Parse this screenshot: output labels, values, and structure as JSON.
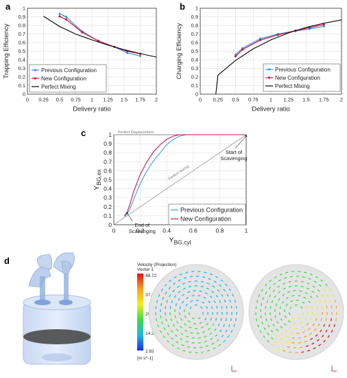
{
  "panels": {
    "a": "a",
    "b": "b",
    "c": "c",
    "d": "d"
  },
  "chart_data": [
    {
      "panel": "a",
      "type": "line",
      "xlabel": "Delivery ratio",
      "ylabel": "Trapping Efficiency",
      "xlim": [
        0,
        2
      ],
      "ylim": [
        0,
        1
      ],
      "xticks": [
        "0",
        "0.25",
        "0.5",
        "0.75",
        "1",
        "1.25",
        "1.5",
        "1.75",
        "2"
      ],
      "yticks": [
        "0",
        "0.1",
        "0.2",
        "0.3",
        "0.4",
        "0.5",
        "0.6",
        "0.7",
        "0.8",
        "0.9",
        "1"
      ],
      "grid": true,
      "legend": "bottom-left",
      "series": [
        {
          "name": "Previous Configuration",
          "color": "#3a8dde",
          "marker": "diamond",
          "x": [
            0.5,
            0.6,
            0.85,
            1.1,
            1.35,
            1.55,
            1.75
          ],
          "y": [
            0.935,
            0.9,
            0.73,
            0.62,
            0.55,
            0.48,
            0.445
          ]
        },
        {
          "name": "New Configuration",
          "color": "#c0153a",
          "marker": "diamond",
          "x": [
            0.5,
            0.6,
            0.85,
            1.1,
            1.35,
            1.55,
            1.75
          ],
          "y": [
            0.905,
            0.87,
            0.72,
            0.62,
            0.55,
            0.5,
            0.47
          ]
        },
        {
          "name": "Perfect Mixing",
          "color": "#000000",
          "marker": "none",
          "x": [
            0.25,
            0.5,
            0.75,
            1,
            1.25,
            1.5,
            1.75,
            2
          ],
          "y": [
            0.907,
            0.787,
            0.699,
            0.632,
            0.571,
            0.518,
            0.472,
            0.432
          ]
        }
      ]
    },
    {
      "panel": "b",
      "type": "line",
      "xlabel": "Delivery ratio",
      "ylabel": "Charging Efficiency",
      "xlim": [
        0,
        2
      ],
      "ylim": [
        0,
        1
      ],
      "xticks": [
        "0",
        "0.25",
        "0.5",
        "0.75",
        "1",
        "1.25",
        "1.5",
        "1.75",
        "2"
      ],
      "yticks": [
        "0",
        "0.1",
        "0.2",
        "0.3",
        "0.4",
        "0.5",
        "0.6",
        "0.7",
        "0.8",
        "0.9",
        "1"
      ],
      "grid": true,
      "legend": "bottom-right",
      "series": [
        {
          "name": "Previous Configuration",
          "color": "#3a8dde",
          "marker": "diamond",
          "x": [
            0.5,
            0.6,
            0.85,
            1.1,
            1.35,
            1.55,
            1.75
          ],
          "y": [
            0.46,
            0.535,
            0.645,
            0.7,
            0.735,
            0.76,
            0.79
          ]
        },
        {
          "name": "New Configuration",
          "color": "#c0153a",
          "marker": "diamond",
          "x": [
            0.5,
            0.6,
            0.85,
            1.1,
            1.35,
            1.55,
            1.75
          ],
          "y": [
            0.44,
            0.52,
            0.63,
            0.69,
            0.74,
            0.775,
            0.81
          ]
        },
        {
          "name": "Perfect Mixing",
          "color": "#000000",
          "marker": "none",
          "x": [
            0.22,
            0.25,
            0.5,
            0.75,
            1,
            1.25,
            1.5,
            1.75,
            2
          ],
          "y": [
            0.0,
            0.221,
            0.393,
            0.528,
            0.632,
            0.713,
            0.777,
            0.826,
            0.865
          ]
        }
      ]
    },
    {
      "panel": "c",
      "type": "line",
      "xlabel": "Y",
      "xlabel_sub": "BG,cyl",
      "ylabel": "Y",
      "ylabel_sub": "BG,ex",
      "xlim": [
        0,
        1
      ],
      "ylim": [
        0,
        1
      ],
      "xticks": [
        "0",
        "0.2",
        "0.4",
        "0.6",
        "0.8",
        "1"
      ],
      "yticks": [
        "0",
        "0.1",
        "0.2",
        "0.3",
        "0.4",
        "0.5",
        "0.6",
        "0.7",
        "0.8",
        "0.9",
        "1"
      ],
      "grid": true,
      "legend": "bottom-right",
      "reference_lines": [
        {
          "label": "Perfect Displacement",
          "x": [
            0,
            1
          ],
          "y": [
            1,
            1
          ],
          "color": "#999999"
        },
        {
          "label": "Perfect mixing",
          "x": [
            0,
            1
          ],
          "y": [
            0,
            1
          ],
          "color": "#999999"
        }
      ],
      "annotations": [
        {
          "text_lines": [
            "Start of",
            "Scavenging"
          ],
          "x": 1.0,
          "y": 0.985
        },
        {
          "text_lines": [
            "End of",
            "Scavenging"
          ],
          "x": 0.1,
          "y": 0.13
        }
      ],
      "series": [
        {
          "name": "Previous Configuration",
          "color": "#3aa0e0",
          "marker": "none",
          "x": [
            0.08,
            0.1,
            0.12,
            0.15,
            0.2,
            0.25,
            0.3,
            0.35,
            0.4,
            0.45,
            0.5,
            0.55,
            0.7,
            1.0
          ],
          "y": [
            0.09,
            0.12,
            0.17,
            0.28,
            0.46,
            0.6,
            0.71,
            0.8,
            0.89,
            0.95,
            0.985,
            1.0,
            1.0,
            1.0
          ]
        },
        {
          "name": "New Configuration",
          "color": "#c0185a",
          "marker": "none",
          "x": [
            0.08,
            0.1,
            0.12,
            0.15,
            0.2,
            0.25,
            0.3,
            0.35,
            0.4,
            0.45,
            0.5,
            0.55,
            0.7,
            1.0
          ],
          "y": [
            0.1,
            0.14,
            0.22,
            0.37,
            0.56,
            0.7,
            0.81,
            0.89,
            0.95,
            0.985,
            1.0,
            1.0,
            1.0,
            1.0
          ]
        }
      ]
    }
  ],
  "colorbar": {
    "title_line1": "Velocity (Projection)",
    "title_line2": "Vector 1",
    "ticks": [
      "48.72",
      "37.24",
      "25.77",
      "14.29",
      "2.82"
    ],
    "unit": "[m s^-1]",
    "colors": [
      "#e8121b",
      "#f5a21d",
      "#f1ee23",
      "#3ddc45",
      "#1fb7e6",
      "#1a2ee6"
    ]
  },
  "icon_names": [
    "engine-cylinder-illustration",
    "velocity-field-left",
    "velocity-field-right",
    "axis-triad-icon"
  ]
}
